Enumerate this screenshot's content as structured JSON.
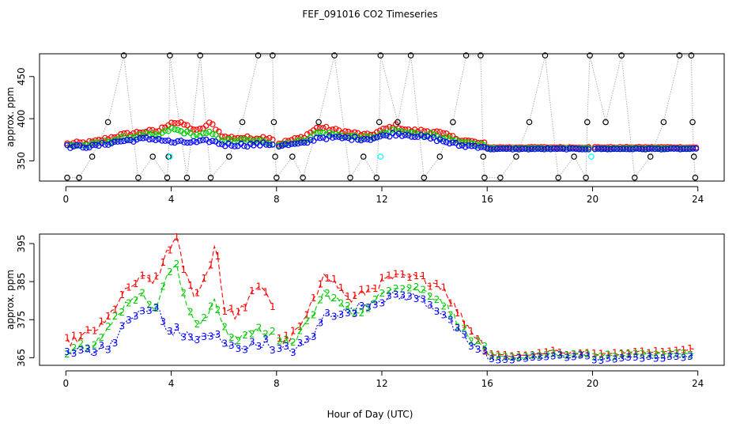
{
  "title": "FEF_091016  CO2 Timeseries",
  "xlabel": "Hour of Day (UTC)",
  "colors": {
    "series1": "#ff0000",
    "series2": "#00cc00",
    "series3": "#0000ff",
    "reference": "#000000",
    "reference_line": "#b0b0b0",
    "cyan": "#00ffff"
  },
  "chart_data": [
    {
      "type": "scatter",
      "panel": "top",
      "title": "FEF_091016  CO2 Timeseries",
      "xlabel": "",
      "ylabel": "approx. ppm",
      "xlim": [
        -1,
        25
      ],
      "ylim": [
        326,
        477
      ],
      "x_ticks": [
        0,
        4,
        8,
        12,
        16,
        20,
        24
      ],
      "y_ticks": [
        350,
        400,
        450
      ],
      "reference_levels": [
        330,
        355,
        396,
        475
      ],
      "reference_pattern": [
        [
          0.05,
          330
        ],
        [
          0.5,
          330
        ],
        [
          1.0,
          355
        ],
        [
          1.6,
          396
        ],
        [
          2.2,
          475
        ],
        [
          2.75,
          330
        ],
        [
          3.3,
          355
        ],
        [
          3.85,
          330
        ],
        [
          3.9,
          355
        ],
        [
          3.95,
          475
        ],
        [
          4.6,
          330
        ],
        [
          5.1,
          475
        ],
        [
          5.5,
          330
        ],
        [
          6.2,
          355
        ],
        [
          6.7,
          396
        ],
        [
          7.3,
          475
        ],
        [
          7.85,
          475
        ],
        [
          7.9,
          396
        ],
        [
          7.95,
          355
        ],
        [
          8.0,
          330
        ],
        [
          8.6,
          355
        ],
        [
          9.0,
          330
        ],
        [
          9.6,
          396
        ],
        [
          10.2,
          475
        ],
        [
          10.8,
          330
        ],
        [
          11.3,
          355
        ],
        [
          11.8,
          330
        ],
        [
          11.9,
          396
        ],
        [
          11.95,
          475
        ],
        [
          12.6,
          396
        ],
        [
          13.1,
          475
        ],
        [
          13.6,
          330
        ],
        [
          14.2,
          355
        ],
        [
          14.7,
          396
        ],
        [
          15.2,
          475
        ],
        [
          15.75,
          475
        ],
        [
          15.85,
          355
        ],
        [
          15.9,
          330
        ],
        [
          16.5,
          330
        ],
        [
          17.1,
          355
        ],
        [
          17.6,
          396
        ],
        [
          18.2,
          475
        ],
        [
          18.7,
          330
        ],
        [
          19.3,
          355
        ],
        [
          19.75,
          330
        ],
        [
          19.8,
          396
        ],
        [
          19.9,
          475
        ],
        [
          20.5,
          396
        ],
        [
          21.1,
          475
        ],
        [
          21.6,
          330
        ],
        [
          22.2,
          355
        ],
        [
          22.7,
          396
        ],
        [
          23.3,
          475
        ],
        [
          23.75,
          475
        ],
        [
          23.8,
          396
        ],
        [
          23.85,
          355
        ],
        [
          23.9,
          330
        ]
      ],
      "cyan_points": [
        [
          3.95,
          355
        ],
        [
          11.95,
          355
        ],
        [
          19.95,
          355
        ]
      ],
      "series": [
        {
          "name": "1",
          "profile": [
            [
              0.0,
              370
            ],
            [
              1.0,
              372
            ],
            [
              2.0,
              380
            ],
            [
              3.0,
              385
            ],
            [
              3.5,
              385
            ],
            [
              4.0,
              396
            ],
            [
              4.5,
              393
            ],
            [
              5.0,
              385
            ],
            [
              5.5,
              395
            ],
            [
              6.0,
              378
            ],
            [
              7.0,
              377
            ],
            [
              7.8,
              378
            ],
            [
              8.0,
              370
            ],
            [
              9.0,
              378
            ],
            [
              9.6,
              390
            ],
            [
              10.5,
              385
            ],
            [
              11.5,
              380
            ],
            [
              12.5,
              392
            ],
            [
              13.0,
              386
            ],
            [
              14.0,
              385
            ],
            [
              15.0,
              375
            ],
            [
              15.9,
              370
            ],
            [
              16.0,
              366
            ],
            [
              20.0,
              366
            ],
            [
              20.2,
              366
            ],
            [
              24.0,
              366
            ]
          ]
        },
        {
          "name": "2",
          "profile": [
            [
              0.0,
              368
            ],
            [
              1.0,
              369
            ],
            [
              2.0,
              376
            ],
            [
              3.0,
              381
            ],
            [
              3.5,
              380
            ],
            [
              4.0,
              388
            ],
            [
              4.5,
              384
            ],
            [
              5.0,
              380
            ],
            [
              5.5,
              383
            ],
            [
              6.0,
              374
            ],
            [
              7.0,
              374
            ],
            [
              7.8,
              372
            ],
            [
              8.0,
              369
            ],
            [
              9.0,
              374
            ],
            [
              9.6,
              384
            ],
            [
              10.5,
              380
            ],
            [
              11.5,
              377
            ],
            [
              12.5,
              386
            ],
            [
              13.0,
              383
            ],
            [
              14.0,
              381
            ],
            [
              15.0,
              371
            ],
            [
              15.9,
              369
            ],
            [
              16.0,
              365
            ],
            [
              20.0,
              365
            ],
            [
              20.2,
              365
            ],
            [
              24.0,
              365
            ]
          ]
        },
        {
          "name": "3",
          "profile": [
            [
              0.0,
              367
            ],
            [
              1.0,
              367
            ],
            [
              2.0,
              373
            ],
            [
              3.0,
              376
            ],
            [
              3.5,
              376
            ],
            [
              4.0,
              372
            ],
            [
              4.5,
              372
            ],
            [
              5.0,
              372
            ],
            [
              5.5,
              374
            ],
            [
              6.0,
              369
            ],
            [
              7.0,
              369
            ],
            [
              7.8,
              370
            ],
            [
              8.0,
              368
            ],
            [
              9.0,
              370
            ],
            [
              9.6,
              378
            ],
            [
              10.5,
              377
            ],
            [
              11.5,
              376
            ],
            [
              12.5,
              382
            ],
            [
              13.0,
              381
            ],
            [
              14.0,
              376
            ],
            [
              15.0,
              368
            ],
            [
              15.9,
              367
            ],
            [
              16.0,
              364
            ],
            [
              20.0,
              364
            ],
            [
              20.2,
              364
            ],
            [
              24.0,
              364
            ]
          ]
        }
      ]
    },
    {
      "type": "line",
      "panel": "bottom",
      "title": "",
      "xlabel": "Hour of Day (UTC)",
      "ylabel": "approx. ppm",
      "xlim": [
        -1,
        25
      ],
      "ylim": [
        363,
        397.5
      ],
      "x_ticks": [
        0,
        4,
        8,
        12,
        16,
        20,
        24
      ],
      "y_ticks": [
        365,
        375,
        385,
        395
      ],
      "gap_hours": [
        8.0,
        20.0
      ],
      "series": [
        {
          "name": "1",
          "label": "1",
          "profile": [
            [
              0.0,
              369
            ],
            [
              0.5,
              370
            ],
            [
              1.0,
              372
            ],
            [
              1.5,
              374
            ],
            [
              2.0,
              380
            ],
            [
              2.5,
              384
            ],
            [
              3.0,
              386
            ],
            [
              3.5,
              385
            ],
            [
              3.8,
              393
            ],
            [
              4.2,
              396
            ],
            [
              4.5,
              388
            ],
            [
              4.8,
              382
            ],
            [
              5.1,
              383
            ],
            [
              5.5,
              390
            ],
            [
              5.7,
              396
            ],
            [
              6.0,
              378
            ],
            [
              6.5,
              376
            ],
            [
              7.0,
              381
            ],
            [
              7.5,
              384
            ],
            [
              7.9,
              378
            ],
            [
              8.0,
              369
            ],
            [
              8.5,
              370
            ],
            [
              9.0,
              374
            ],
            [
              9.5,
              381
            ],
            [
              9.8,
              388
            ],
            [
              10.3,
              384
            ],
            [
              10.8,
              380
            ],
            [
              11.3,
              382
            ],
            [
              11.8,
              384
            ],
            [
              12.3,
              386
            ],
            [
              12.8,
              386
            ],
            [
              13.3,
              386
            ],
            [
              13.8,
              385
            ],
            [
              14.3,
              384
            ],
            [
              14.8,
              378
            ],
            [
              15.3,
              373
            ],
            [
              15.9,
              368
            ],
            [
              16.0,
              366
            ],
            [
              17.0,
              365.5
            ],
            [
              18.0,
              366
            ],
            [
              18.6,
              367
            ],
            [
              19.0,
              366
            ],
            [
              19.8,
              366.5
            ],
            [
              20.0,
              366
            ],
            [
              21.0,
              366
            ],
            [
              21.5,
              366.5
            ],
            [
              22.0,
              366.5
            ],
            [
              23.0,
              366.5
            ],
            [
              23.8,
              367.5
            ]
          ]
        },
        {
          "name": "2",
          "label": "2",
          "profile": [
            [
              0.0,
              367
            ],
            [
              0.5,
              368
            ],
            [
              1.0,
              369
            ],
            [
              1.5,
              371
            ],
            [
              2.0,
              377
            ],
            [
              2.5,
              381
            ],
            [
              3.0,
              381
            ],
            [
              3.5,
              378
            ],
            [
              3.8,
              387
            ],
            [
              4.2,
              389
            ],
            [
              4.5,
              380
            ],
            [
              4.8,
              376
            ],
            [
              5.1,
              374
            ],
            [
              5.5,
              378
            ],
            [
              5.7,
              380
            ],
            [
              6.0,
              372
            ],
            [
              6.5,
              370
            ],
            [
              7.0,
              372
            ],
            [
              7.5,
              372
            ],
            [
              7.9,
              372
            ],
            [
              8.0,
              368
            ],
            [
              8.5,
              369
            ],
            [
              9.0,
              372
            ],
            [
              9.5,
              378
            ],
            [
              9.8,
              382
            ],
            [
              10.3,
              380
            ],
            [
              10.8,
              377
            ],
            [
              11.3,
              378
            ],
            [
              11.8,
              380
            ],
            [
              12.3,
              384
            ],
            [
              12.8,
              384
            ],
            [
              13.3,
              383
            ],
            [
              13.8,
              382
            ],
            [
              14.3,
              380
            ],
            [
              14.8,
              375
            ],
            [
              15.3,
              370
            ],
            [
              15.9,
              367
            ],
            [
              16.0,
              365.5
            ],
            [
              17.0,
              365
            ],
            [
              18.0,
              365.5
            ],
            [
              18.6,
              366
            ],
            [
              19.0,
              365.5
            ],
            [
              19.8,
              366
            ],
            [
              20.0,
              365.5
            ],
            [
              21.0,
              365.5
            ],
            [
              21.5,
              366
            ],
            [
              22.0,
              366
            ],
            [
              23.0,
              366
            ],
            [
              23.8,
              366
            ]
          ]
        },
        {
          "name": "3",
          "label": "3",
          "profile": [
            [
              0.0,
              366
            ],
            [
              0.5,
              366.5
            ],
            [
              1.0,
              367
            ],
            [
              1.5,
              367.5
            ],
            [
              2.0,
              371
            ],
            [
              2.5,
              376
            ],
            [
              3.0,
              377
            ],
            [
              3.5,
              378
            ],
            [
              3.8,
              372
            ],
            [
              4.2,
              372
            ],
            [
              4.5,
              371
            ],
            [
              4.8,
              370
            ],
            [
              5.1,
              370
            ],
            [
              5.5,
              371
            ],
            [
              5.7,
              371
            ],
            [
              6.0,
              368
            ],
            [
              6.5,
              368
            ],
            [
              7.0,
              368
            ],
            [
              7.5,
              369
            ],
            [
              7.9,
              368
            ],
            [
              8.0,
              367
            ],
            [
              8.5,
              367
            ],
            [
              9.0,
              368
            ],
            [
              9.5,
              372
            ],
            [
              9.8,
              376
            ],
            [
              10.3,
              377
            ],
            [
              10.8,
              377
            ],
            [
              11.3,
              379
            ],
            [
              11.8,
              380
            ],
            [
              12.3,
              381
            ],
            [
              12.8,
              381
            ],
            [
              13.3,
              381
            ],
            [
              13.8,
              379
            ],
            [
              14.3,
              377
            ],
            [
              14.8,
              372
            ],
            [
              15.3,
              369
            ],
            [
              15.9,
              366
            ],
            [
              16.0,
              364.5
            ],
            [
              17.0,
              364.5
            ],
            [
              18.0,
              365
            ],
            [
              18.6,
              365.5
            ],
            [
              19.0,
              365
            ],
            [
              19.8,
              365.5
            ],
            [
              20.0,
              364.5
            ],
            [
              21.0,
              364.5
            ],
            [
              21.5,
              365
            ],
            [
              22.0,
              365
            ],
            [
              23.0,
              365
            ],
            [
              23.8,
              365.5
            ]
          ]
        }
      ]
    }
  ]
}
